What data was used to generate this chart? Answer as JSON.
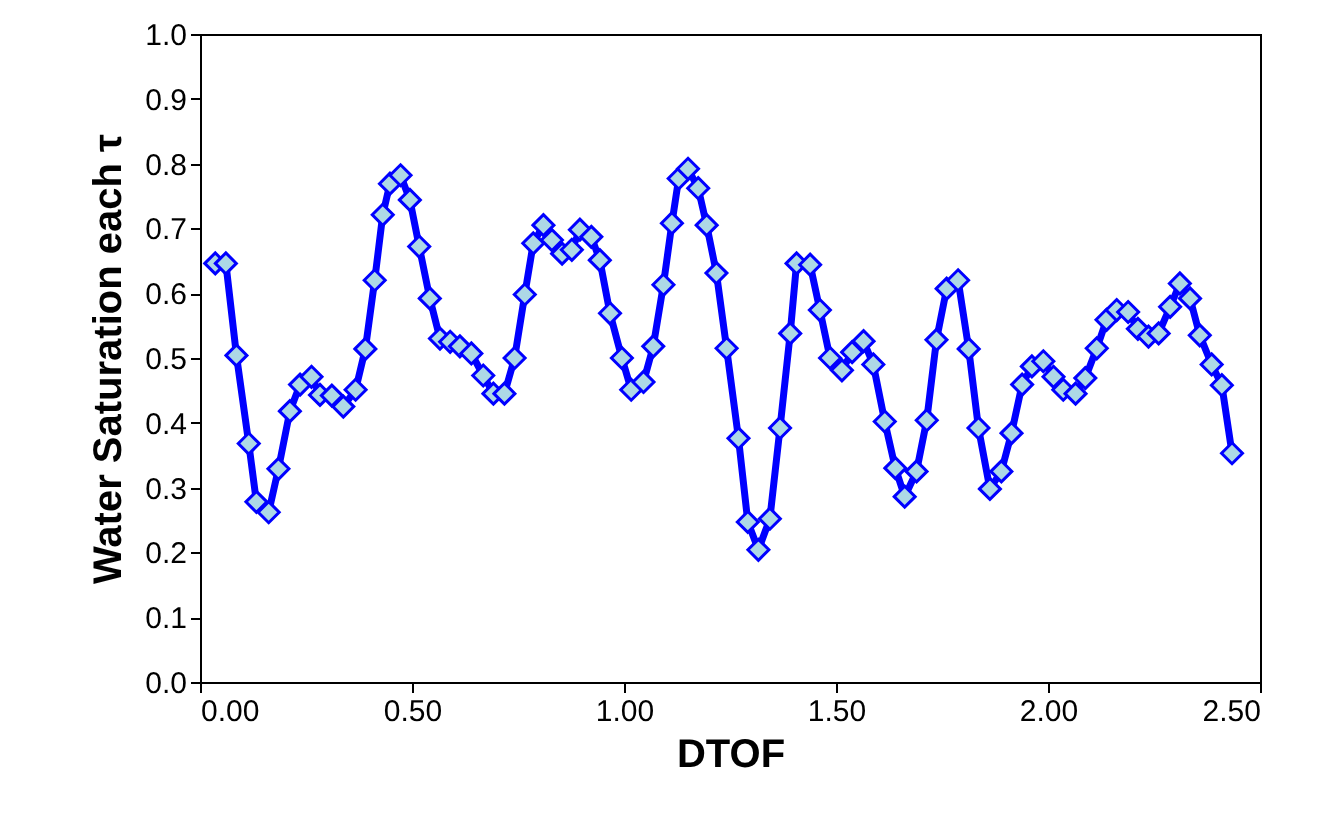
{
  "chart_data": {
    "type": "line",
    "xlabel": "DTOF",
    "ylabel": "Water Saturation each τ",
    "x": [
      0.036,
      0.061,
      0.086,
      0.115,
      0.133,
      0.162,
      0.185,
      0.212,
      0.236,
      0.263,
      0.283,
      0.311,
      0.338,
      0.367,
      0.39,
      0.412,
      0.431,
      0.448,
      0.473,
      0.495,
      0.517,
      0.542,
      0.566,
      0.59,
      0.613,
      0.64,
      0.668,
      0.692,
      0.718,
      0.742,
      0.766,
      0.786,
      0.81,
      0.83,
      0.854,
      0.877,
      0.896,
      0.923,
      0.943,
      0.967,
      0.995,
      1.017,
      1.046,
      1.069,
      1.093,
      1.113,
      1.129,
      1.151,
      1.175,
      1.195,
      1.218,
      1.242,
      1.27,
      1.292,
      1.317,
      1.344,
      1.368,
      1.392,
      1.407,
      1.439,
      1.462,
      1.486,
      1.514,
      1.538,
      1.565,
      1.588,
      1.615,
      1.64,
      1.662,
      1.69,
      1.714,
      1.737,
      1.761,
      1.788,
      1.813,
      1.836,
      1.863,
      1.89,
      1.914,
      1.939,
      1.962,
      1.989,
      2.013,
      2.036,
      2.065,
      2.088,
      2.115,
      2.138,
      2.162,
      2.189,
      2.212,
      2.237,
      2.261,
      2.288,
      2.311,
      2.335,
      2.358,
      2.386,
      2.41,
      2.434
    ],
    "series": [
      {
        "color": "#0000ff",
        "values": [
          0.646,
          0.646,
          0.504,
          0.368,
          0.278,
          0.262,
          0.329,
          0.418,
          0.459,
          0.471,
          0.443,
          0.442,
          0.425,
          0.451,
          0.514,
          0.62,
          0.721,
          0.769,
          0.782,
          0.744,
          0.672,
          0.592,
          0.53,
          0.525,
          0.518,
          0.507,
          0.473,
          0.445,
          0.445,
          0.5,
          0.598,
          0.677,
          0.705,
          0.682,
          0.661,
          0.667,
          0.698,
          0.687,
          0.651,
          0.569,
          0.5,
          0.451,
          0.463,
          0.518,
          0.613,
          0.708,
          0.777,
          0.792,
          0.762,
          0.705,
          0.631,
          0.515,
          0.376,
          0.247,
          0.204,
          0.252,
          0.392,
          0.538,
          0.646,
          0.644,
          0.574,
          0.5,
          0.481,
          0.509,
          0.526,
          0.49,
          0.402,
          0.33,
          0.286,
          0.325,
          0.404,
          0.528,
          0.607,
          0.62,
          0.514,
          0.392,
          0.298,
          0.325,
          0.384,
          0.459,
          0.487,
          0.495,
          0.471,
          0.451,
          0.445,
          0.469,
          0.515,
          0.559,
          0.574,
          0.571,
          0.545,
          0.533,
          0.538,
          0.579,
          0.615,
          0.592,
          0.535,
          0.49,
          0.458,
          0.353
        ]
      }
    ],
    "xlim": [
      0,
      2.5
    ],
    "xticks": [
      {
        "value": 0,
        "label": "0.00"
      },
      {
        "value": 0.5,
        "label": "0.50"
      },
      {
        "value": 1,
        "label": "1.00"
      },
      {
        "value": 1.5,
        "label": "1.50"
      },
      {
        "value": 2,
        "label": "2.00"
      },
      {
        "value": 2.5,
        "label": "2.50"
      }
    ],
    "ylim": [
      0,
      1
    ],
    "yticks": [
      {
        "value": 0,
        "label": "0.0"
      },
      {
        "value": 0.1,
        "label": "0.1"
      },
      {
        "value": 0.2,
        "label": "0.2"
      },
      {
        "value": 0.3,
        "label": "0.3"
      },
      {
        "value": 0.4,
        "label": "0.4"
      },
      {
        "value": 0.5,
        "label": "0.5"
      },
      {
        "value": 0.6,
        "label": "0.6"
      },
      {
        "value": 0.7,
        "label": "0.7"
      },
      {
        "value": 0.8,
        "label": "0.8"
      },
      {
        "value": 0.9,
        "label": "0.9"
      },
      {
        "value": 1,
        "label": "1.0"
      }
    ],
    "grid": false,
    "marker": "diamond",
    "line_style": "solid"
  }
}
